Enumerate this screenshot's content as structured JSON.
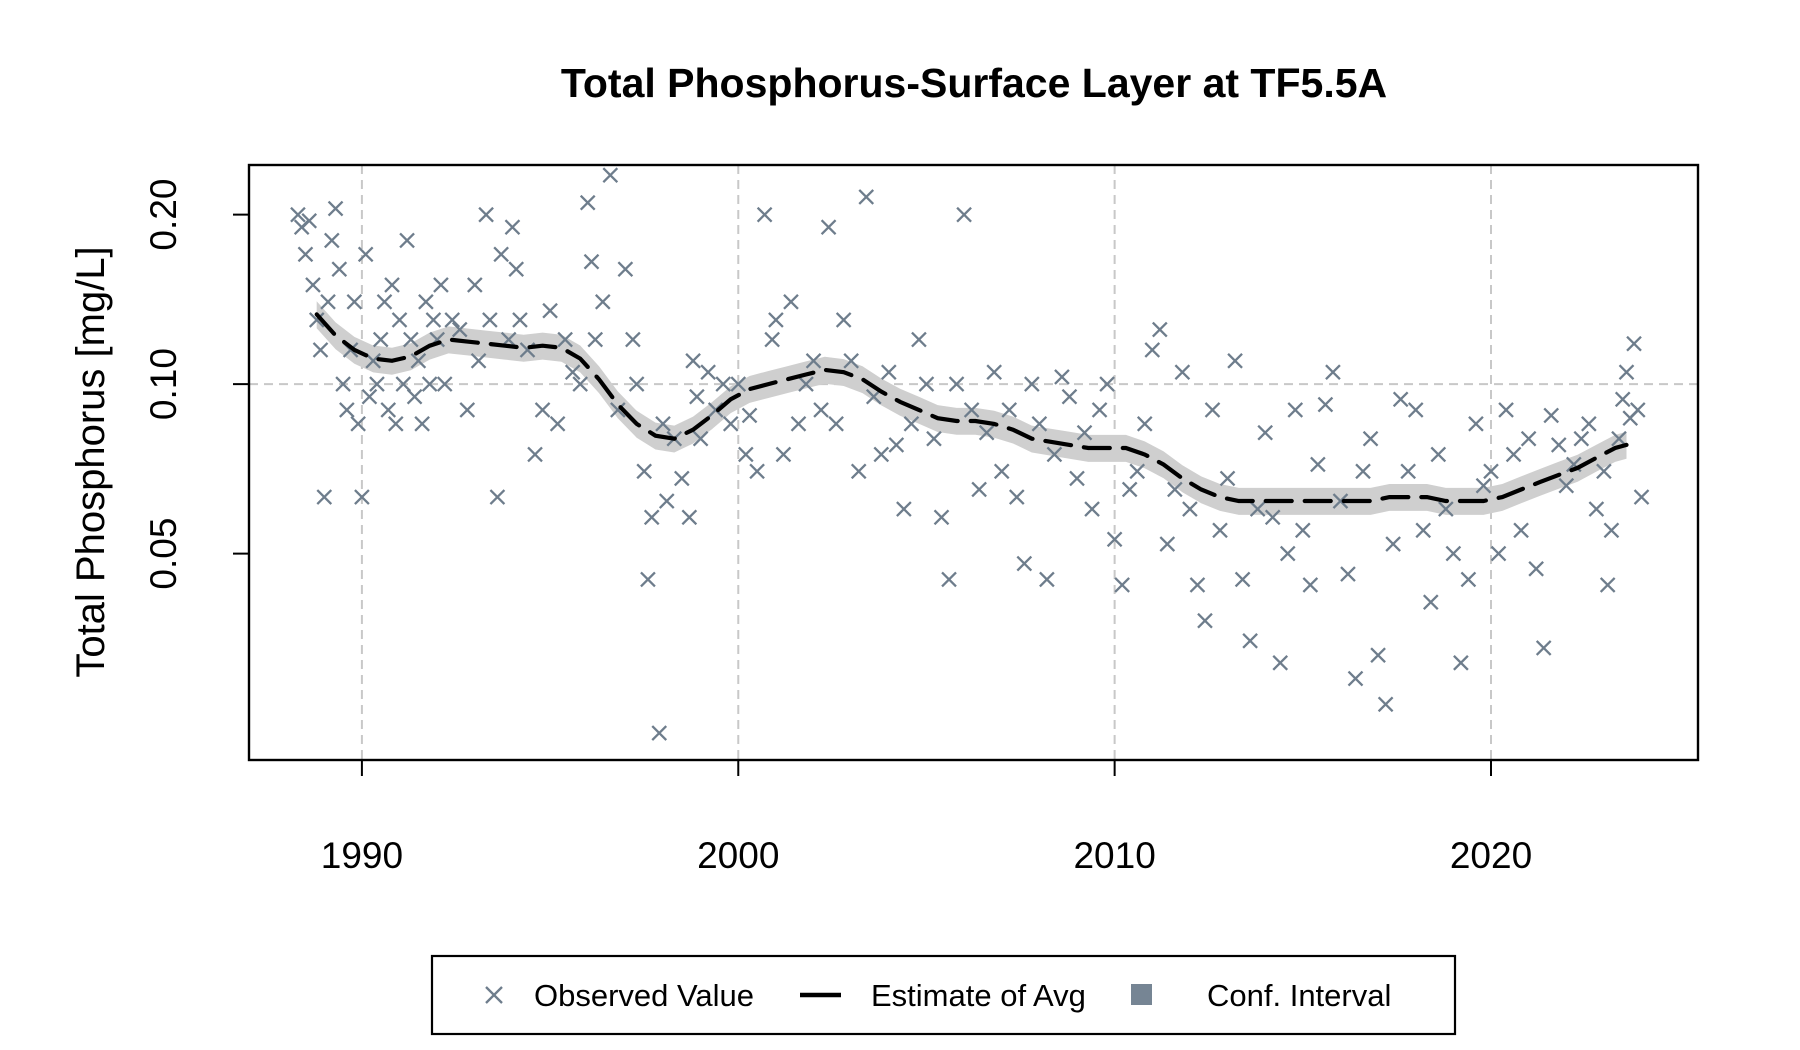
{
  "chart_data": {
    "type": "scatter",
    "title": "Total Phosphorus-Surface Layer at TF5.5A",
    "xlabel": "",
    "ylabel": "Total Phosphorus [mg/L]",
    "y_scale": "log",
    "xlim": [
      1987,
      2025.5
    ],
    "ylim": [
      0.0215,
      0.245
    ],
    "x_ticks": [
      1990,
      2000,
      2010,
      2020
    ],
    "x_tick_labels": [
      "1990",
      "2000",
      "2010",
      "2020"
    ],
    "y_ticks": [
      0.05,
      0.1,
      0.2
    ],
    "y_tick_labels": [
      "0.05",
      "0.10",
      "0.20"
    ],
    "grid": "dashed at major ticks",
    "legend": {
      "position": "bottom",
      "entries": [
        {
          "label": "Observed Value",
          "symbol": "x-marker"
        },
        {
          "label": "Estimate of Avg",
          "symbol": "dashed-line"
        },
        {
          "label": "Conf. Interval",
          "symbol": "filled-square"
        }
      ]
    },
    "colors": {
      "observed": "#6e7d8c",
      "estimate": "#000000",
      "ci_band": "#cfcfcf",
      "ci_legend": "#768594",
      "grid": "#c8c8c8"
    },
    "series": [
      {
        "name": "Observed Value",
        "type": "scatter",
        "points": [
          [
            1988.3,
            0.2
          ],
          [
            1988.4,
            0.19
          ],
          [
            1988.5,
            0.17
          ],
          [
            1988.6,
            0.195
          ],
          [
            1988.7,
            0.15
          ],
          [
            1988.8,
            0.13
          ],
          [
            1988.9,
            0.115
          ],
          [
            1989.0,
            0.063
          ],
          [
            1989.1,
            0.14
          ],
          [
            1989.2,
            0.18
          ],
          [
            1989.3,
            0.205
          ],
          [
            1989.4,
            0.16
          ],
          [
            1989.5,
            0.1
          ],
          [
            1989.6,
            0.09
          ],
          [
            1989.7,
            0.115
          ],
          [
            1989.8,
            0.14
          ],
          [
            1989.9,
            0.085
          ],
          [
            1990.0,
            0.063
          ],
          [
            1990.1,
            0.17
          ],
          [
            1990.2,
            0.095
          ],
          [
            1990.3,
            0.11
          ],
          [
            1990.4,
            0.1
          ],
          [
            1990.5,
            0.12
          ],
          [
            1990.6,
            0.14
          ],
          [
            1990.7,
            0.09
          ],
          [
            1990.8,
            0.15
          ],
          [
            1990.9,
            0.085
          ],
          [
            1991.0,
            0.13
          ],
          [
            1991.1,
            0.1
          ],
          [
            1991.2,
            0.18
          ],
          [
            1991.3,
            0.12
          ],
          [
            1991.4,
            0.095
          ],
          [
            1991.5,
            0.11
          ],
          [
            1991.6,
            0.085
          ],
          [
            1991.7,
            0.14
          ],
          [
            1991.8,
            0.1
          ],
          [
            1991.9,
            0.13
          ],
          [
            1992.0,
            0.12
          ],
          [
            1992.1,
            0.15
          ],
          [
            1992.2,
            0.1
          ],
          [
            1992.4,
            0.13
          ],
          [
            1992.6,
            0.125
          ],
          [
            1992.8,
            0.09
          ],
          [
            1993.0,
            0.15
          ],
          [
            1993.1,
            0.11
          ],
          [
            1993.3,
            0.2
          ],
          [
            1993.4,
            0.13
          ],
          [
            1993.6,
            0.063
          ],
          [
            1993.7,
            0.17
          ],
          [
            1993.9,
            0.12
          ],
          [
            1994.0,
            0.19
          ],
          [
            1994.1,
            0.16
          ],
          [
            1994.2,
            0.13
          ],
          [
            1994.4,
            0.115
          ],
          [
            1994.6,
            0.075
          ],
          [
            1994.8,
            0.09
          ],
          [
            1995.0,
            0.135
          ],
          [
            1995.2,
            0.085
          ],
          [
            1995.4,
            0.12
          ],
          [
            1995.6,
            0.105
          ],
          [
            1995.8,
            0.1
          ],
          [
            1996.0,
            0.21
          ],
          [
            1996.1,
            0.165
          ],
          [
            1996.2,
            0.12
          ],
          [
            1996.4,
            0.14
          ],
          [
            1996.6,
            0.235
          ],
          [
            1996.8,
            0.09
          ],
          [
            1997.0,
            0.16
          ],
          [
            1997.2,
            0.12
          ],
          [
            1997.3,
            0.1
          ],
          [
            1997.5,
            0.07
          ],
          [
            1997.6,
            0.045
          ],
          [
            1997.7,
            0.058
          ],
          [
            1997.9,
            0.024
          ],
          [
            1998.0,
            0.085
          ],
          [
            1998.1,
            0.062
          ],
          [
            1998.3,
            0.08
          ],
          [
            1998.5,
            0.068
          ],
          [
            1998.7,
            0.058
          ],
          [
            1998.8,
            0.11
          ],
          [
            1998.9,
            0.095
          ],
          [
            1999.0,
            0.08
          ],
          [
            1999.2,
            0.105
          ],
          [
            1999.4,
            0.09
          ],
          [
            1999.6,
            0.1
          ],
          [
            1999.8,
            0.085
          ],
          [
            2000.0,
            0.1
          ],
          [
            2000.2,
            0.075
          ],
          [
            2000.3,
            0.088
          ],
          [
            2000.5,
            0.07
          ],
          [
            2000.7,
            0.2
          ],
          [
            2000.9,
            0.12
          ],
          [
            2001.0,
            0.13
          ],
          [
            2001.2,
            0.075
          ],
          [
            2001.4,
            0.14
          ],
          [
            2001.6,
            0.085
          ],
          [
            2001.8,
            0.1
          ],
          [
            2002.0,
            0.11
          ],
          [
            2002.2,
            0.09
          ],
          [
            2002.4,
            0.19
          ],
          [
            2002.6,
            0.085
          ],
          [
            2002.8,
            0.13
          ],
          [
            2003.0,
            0.11
          ],
          [
            2003.2,
            0.07
          ],
          [
            2003.4,
            0.215
          ],
          [
            2003.6,
            0.095
          ],
          [
            2003.8,
            0.075
          ],
          [
            2004.0,
            0.105
          ],
          [
            2004.2,
            0.078
          ],
          [
            2004.4,
            0.06
          ],
          [
            2004.6,
            0.085
          ],
          [
            2004.8,
            0.12
          ],
          [
            2005.0,
            0.1
          ],
          [
            2005.2,
            0.08
          ],
          [
            2005.4,
            0.058
          ],
          [
            2005.6,
            0.045
          ],
          [
            2005.8,
            0.1
          ],
          [
            2006.0,
            0.2
          ],
          [
            2006.2,
            0.09
          ],
          [
            2006.4,
            0.065
          ],
          [
            2006.6,
            0.082
          ],
          [
            2006.8,
            0.105
          ],
          [
            2007.0,
            0.07
          ],
          [
            2007.2,
            0.09
          ],
          [
            2007.4,
            0.063
          ],
          [
            2007.6,
            0.048
          ],
          [
            2007.8,
            0.1
          ],
          [
            2008.0,
            0.085
          ],
          [
            2008.2,
            0.045
          ],
          [
            2008.4,
            0.075
          ],
          [
            2008.6,
            0.103
          ],
          [
            2008.8,
            0.095
          ],
          [
            2009.0,
            0.068
          ],
          [
            2009.2,
            0.082
          ],
          [
            2009.4,
            0.06
          ],
          [
            2009.6,
            0.09
          ],
          [
            2009.8,
            0.1
          ],
          [
            2010.0,
            0.053
          ],
          [
            2010.2,
            0.044
          ],
          [
            2010.4,
            0.065
          ],
          [
            2010.6,
            0.07
          ],
          [
            2010.8,
            0.085
          ],
          [
            2011.0,
            0.115
          ],
          [
            2011.2,
            0.125
          ],
          [
            2011.4,
            0.052
          ],
          [
            2011.6,
            0.065
          ],
          [
            2011.8,
            0.105
          ],
          [
            2012.0,
            0.06
          ],
          [
            2012.2,
            0.044
          ],
          [
            2012.4,
            0.038
          ],
          [
            2012.6,
            0.09
          ],
          [
            2012.8,
            0.055
          ],
          [
            2013.0,
            0.068
          ],
          [
            2013.2,
            0.11
          ],
          [
            2013.4,
            0.045
          ],
          [
            2013.6,
            0.035
          ],
          [
            2013.8,
            0.06
          ],
          [
            2014.0,
            0.082
          ],
          [
            2014.2,
            0.058
          ],
          [
            2014.4,
            0.032
          ],
          [
            2014.6,
            0.05
          ],
          [
            2014.8,
            0.09
          ],
          [
            2015.0,
            0.055
          ],
          [
            2015.2,
            0.044
          ],
          [
            2015.4,
            0.072
          ],
          [
            2015.6,
            0.092
          ],
          [
            2015.8,
            0.105
          ],
          [
            2016.0,
            0.062
          ],
          [
            2016.2,
            0.046
          ],
          [
            2016.4,
            0.03
          ],
          [
            2016.6,
            0.07
          ],
          [
            2016.8,
            0.08
          ],
          [
            2017.0,
            0.033
          ],
          [
            2017.2,
            0.027
          ],
          [
            2017.4,
            0.052
          ],
          [
            2017.6,
            0.094
          ],
          [
            2017.8,
            0.07
          ],
          [
            2018.0,
            0.09
          ],
          [
            2018.2,
            0.055
          ],
          [
            2018.4,
            0.041
          ],
          [
            2018.6,
            0.075
          ],
          [
            2018.8,
            0.06
          ],
          [
            2019.0,
            0.05
          ],
          [
            2019.2,
            0.032
          ],
          [
            2019.4,
            0.045
          ],
          [
            2019.6,
            0.085
          ],
          [
            2019.8,
            0.066
          ],
          [
            2020.0,
            0.07
          ],
          [
            2020.2,
            0.05
          ],
          [
            2020.4,
            0.09
          ],
          [
            2020.6,
            0.075
          ],
          [
            2020.8,
            0.055
          ],
          [
            2021.0,
            0.08
          ],
          [
            2021.2,
            0.047
          ],
          [
            2021.4,
            0.034
          ],
          [
            2021.6,
            0.088
          ],
          [
            2021.8,
            0.078
          ],
          [
            2022.0,
            0.066
          ],
          [
            2022.2,
            0.072
          ],
          [
            2022.4,
            0.08
          ],
          [
            2022.6,
            0.085
          ],
          [
            2022.8,
            0.06
          ],
          [
            2023.0,
            0.07
          ],
          [
            2023.1,
            0.044
          ],
          [
            2023.2,
            0.055
          ],
          [
            2023.4,
            0.08
          ],
          [
            2023.5,
            0.094
          ],
          [
            2023.6,
            0.105
          ],
          [
            2023.7,
            0.087
          ],
          [
            2023.8,
            0.118
          ],
          [
            2023.9,
            0.09
          ],
          [
            2024.0,
            0.063
          ]
        ]
      },
      {
        "name": "Estimate of Avg",
        "type": "line",
        "points": [
          [
            1988.8,
            0.133
          ],
          [
            1989.3,
            0.122
          ],
          [
            1989.8,
            0.115
          ],
          [
            1990.3,
            0.111
          ],
          [
            1990.8,
            0.11
          ],
          [
            1991.3,
            0.112
          ],
          [
            1991.8,
            0.117
          ],
          [
            1992.3,
            0.12
          ],
          [
            1992.8,
            0.119
          ],
          [
            1993.3,
            0.118
          ],
          [
            1993.8,
            0.117
          ],
          [
            1994.3,
            0.116
          ],
          [
            1994.8,
            0.117
          ],
          [
            1995.3,
            0.116
          ],
          [
            1995.8,
            0.111
          ],
          [
            1996.3,
            0.102
          ],
          [
            1996.8,
            0.092
          ],
          [
            1997.3,
            0.085
          ],
          [
            1997.8,
            0.081
          ],
          [
            1998.3,
            0.08
          ],
          [
            1998.8,
            0.083
          ],
          [
            1999.3,
            0.088
          ],
          [
            1999.8,
            0.094
          ],
          [
            2000.3,
            0.098
          ],
          [
            2000.8,
            0.1
          ],
          [
            2001.3,
            0.102
          ],
          [
            2001.8,
            0.104
          ],
          [
            2002.3,
            0.106
          ],
          [
            2002.8,
            0.105
          ],
          [
            2003.3,
            0.102
          ],
          [
            2003.8,
            0.097
          ],
          [
            2004.3,
            0.093
          ],
          [
            2004.8,
            0.09
          ],
          [
            2005.3,
            0.087
          ],
          [
            2005.8,
            0.086
          ],
          [
            2006.3,
            0.086
          ],
          [
            2006.8,
            0.085
          ],
          [
            2007.3,
            0.083
          ],
          [
            2007.8,
            0.08
          ],
          [
            2008.3,
            0.079
          ],
          [
            2008.8,
            0.078
          ],
          [
            2009.3,
            0.077
          ],
          [
            2009.8,
            0.077
          ],
          [
            2010.3,
            0.077
          ],
          [
            2010.8,
            0.075
          ],
          [
            2011.3,
            0.072
          ],
          [
            2011.8,
            0.068
          ],
          [
            2012.3,
            0.065
          ],
          [
            2012.8,
            0.063
          ],
          [
            2013.3,
            0.062
          ],
          [
            2013.8,
            0.062
          ],
          [
            2014.3,
            0.062
          ],
          [
            2014.8,
            0.062
          ],
          [
            2015.3,
            0.062
          ],
          [
            2015.8,
            0.062
          ],
          [
            2016.3,
            0.062
          ],
          [
            2016.8,
            0.062
          ],
          [
            2017.3,
            0.063
          ],
          [
            2017.8,
            0.063
          ],
          [
            2018.3,
            0.063
          ],
          [
            2018.8,
            0.062
          ],
          [
            2019.3,
            0.062
          ],
          [
            2019.8,
            0.062
          ],
          [
            2020.3,
            0.063
          ],
          [
            2020.8,
            0.065
          ],
          [
            2021.3,
            0.067
          ],
          [
            2021.8,
            0.069
          ],
          [
            2022.3,
            0.071
          ],
          [
            2022.8,
            0.074
          ],
          [
            2023.3,
            0.077
          ],
          [
            2023.6,
            0.078
          ]
        ]
      },
      {
        "name": "Conf. Interval",
        "type": "band",
        "relative_half_width": 0.055
      }
    ]
  }
}
